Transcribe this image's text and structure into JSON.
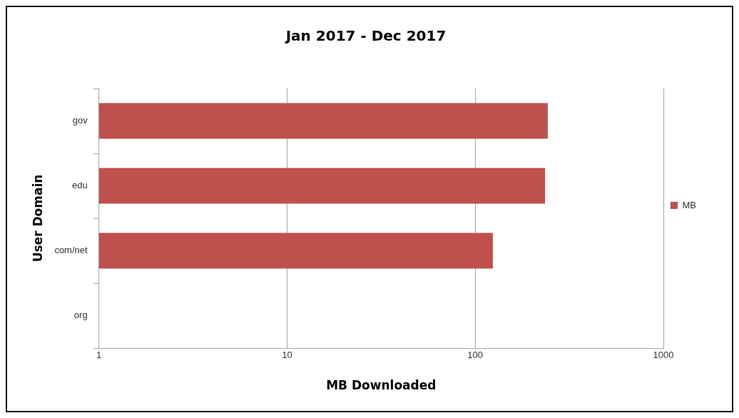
{
  "chart_data": {
    "type": "bar",
    "orientation": "horizontal",
    "title": "Jan 2017 - Dec 2017",
    "xlabel": "MB Downloaded",
    "ylabel": "User Domain",
    "categories": [
      "gov",
      "edu",
      "com/net",
      "org"
    ],
    "series": [
      {
        "name": "MB",
        "color": "#c0504d",
        "values": [
          243,
          235,
          124,
          null
        ]
      }
    ],
    "log": "x",
    "xlim": [
      1,
      1000
    ],
    "xticks": [
      1,
      10,
      100,
      1000
    ],
    "grid": "x",
    "legend": "right"
  }
}
